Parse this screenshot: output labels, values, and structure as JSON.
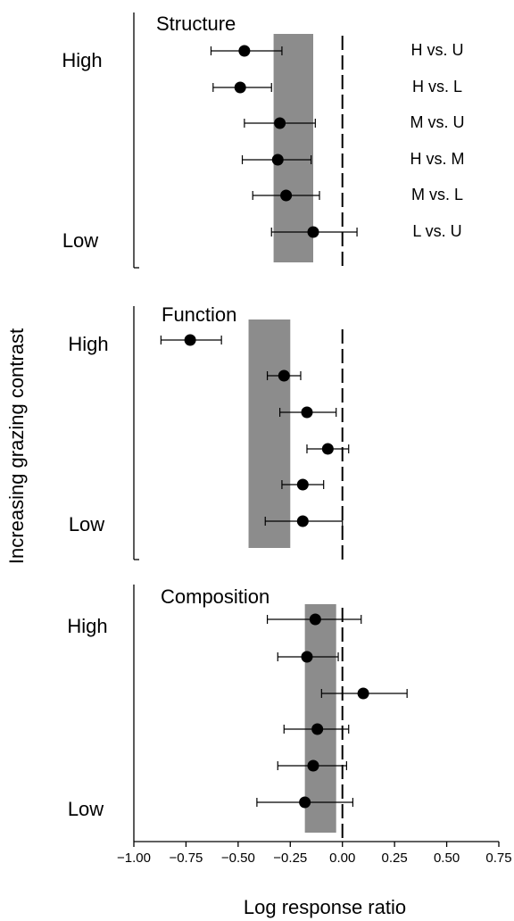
{
  "chart_data": [
    {
      "type": "forest",
      "title": "Structure",
      "y_top_label": "High",
      "y_bottom_label": "Low",
      "row_labels": [
        "H vs. U",
        "H vs. L",
        "M vs. U",
        "H vs. M",
        "M vs. L",
        "L vs. U"
      ],
      "points": [
        {
          "value": -0.47,
          "lower": -0.63,
          "upper": -0.29
        },
        {
          "value": -0.49,
          "lower": -0.62,
          "upper": -0.34
        },
        {
          "value": -0.3,
          "lower": -0.47,
          "upper": -0.13
        },
        {
          "value": -0.31,
          "lower": -0.48,
          "upper": -0.15
        },
        {
          "value": -0.27,
          "lower": -0.43,
          "upper": -0.11
        },
        {
          "value": -0.14,
          "lower": -0.34,
          "upper": 0.07
        }
      ],
      "overall": {
        "lower": -0.33,
        "upper": -0.14
      }
    },
    {
      "type": "forest",
      "title": "Function",
      "y_top_label": "High",
      "y_bottom_label": "Low",
      "points": [
        {
          "value": -0.73,
          "lower": -0.87,
          "upper": -0.58
        },
        {
          "value": -0.28,
          "lower": -0.36,
          "upper": -0.2
        },
        {
          "value": -0.17,
          "lower": -0.3,
          "upper": -0.03
        },
        {
          "value": -0.07,
          "lower": -0.17,
          "upper": 0.03
        },
        {
          "value": -0.19,
          "lower": -0.29,
          "upper": -0.09
        },
        {
          "value": -0.19,
          "lower": -0.37,
          "upper": 0.0
        }
      ],
      "overall": {
        "lower": -0.45,
        "upper": -0.25
      }
    },
    {
      "type": "forest",
      "title": "Composition",
      "y_top_label": "High",
      "y_bottom_label": "Low",
      "points": [
        {
          "value": -0.13,
          "lower": -0.36,
          "upper": 0.09
        },
        {
          "value": -0.17,
          "lower": -0.31,
          "upper": -0.02
        },
        {
          "value": 0.1,
          "lower": -0.1,
          "upper": 0.31
        },
        {
          "value": -0.12,
          "lower": -0.28,
          "upper": 0.03
        },
        {
          "value": -0.14,
          "lower": -0.31,
          "upper": 0.02
        },
        {
          "value": -0.18,
          "lower": -0.41,
          "upper": 0.05
        }
      ],
      "overall": {
        "lower": -0.18,
        "upper": -0.03
      }
    }
  ],
  "x_axis": {
    "xlim": [
      -1.0,
      0.75
    ],
    "ticks": [
      -1.0,
      -0.75,
      -0.5,
      -0.25,
      0.0,
      0.25,
      0.5,
      0.75
    ],
    "tick_labels": [
      "−1.00",
      "−0.75",
      "−0.50",
      "−0.25",
      "0.00",
      "0.25",
      "0.50",
      "0.75"
    ],
    "label": "Log response ratio",
    "reference_line": 0.0
  },
  "y_axis_label": "Increasing grazing contrast",
  "colors": {
    "band": "#8c8c8c",
    "points": "#000000",
    "axes": "#000000"
  }
}
